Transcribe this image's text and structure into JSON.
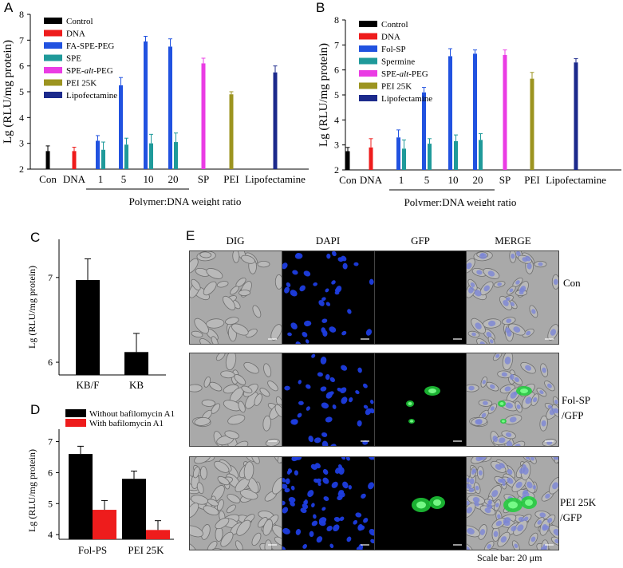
{
  "panels": {
    "a": {
      "letter": "A"
    },
    "b": {
      "letter": "B"
    },
    "c": {
      "letter": "C"
    },
    "d": {
      "letter": "D"
    },
    "e": {
      "letter": "E"
    }
  },
  "chart_data": [
    {
      "id": "A",
      "type": "bar",
      "ylabel": "Lg (RLU/mg protein)",
      "xlabel": "Polymer:DNA weight ratio",
      "ylim": [
        2,
        8
      ],
      "yticks": [
        2,
        3,
        4,
        5,
        6,
        7,
        8
      ],
      "legend_placement": "top-left",
      "groups": [
        {
          "label": "Con",
          "bars": [
            {
              "series": 0,
              "value": 2.7,
              "err": 0.2
            }
          ]
        },
        {
          "label": "DNA",
          "bars": [
            {
              "series": 1,
              "value": 2.7,
              "err": 0.15
            }
          ]
        },
        {
          "label": "1",
          "bars": [
            {
              "series": 2,
              "value": 3.1,
              "err": 0.2
            },
            {
              "series": 3,
              "value": 2.75,
              "err": 0.3
            }
          ]
        },
        {
          "label": "5",
          "bars": [
            {
              "series": 2,
              "value": 5.25,
              "err": 0.3
            },
            {
              "series": 3,
              "value": 2.95,
              "err": 0.25
            }
          ]
        },
        {
          "label": "10",
          "bars": [
            {
              "series": 2,
              "value": 6.95,
              "err": 0.2
            },
            {
              "series": 3,
              "value": 3.0,
              "err": 0.35
            }
          ]
        },
        {
          "label": "20",
          "bars": [
            {
              "series": 2,
              "value": 6.75,
              "err": 0.3
            },
            {
              "series": 3,
              "value": 3.05,
              "err": 0.35
            }
          ]
        },
        {
          "label": "SP",
          "bars": [
            {
              "series": 4,
              "value": 6.1,
              "err": 0.2
            }
          ]
        },
        {
          "label": "PEI",
          "bars": [
            {
              "series": 5,
              "value": 4.9,
              "err": 0.1
            }
          ]
        },
        {
          "label": "Lipofectamine",
          "bars": [
            {
              "series": 6,
              "value": 5.75,
              "err": 0.25
            }
          ]
        }
      ],
      "series": [
        {
          "name": "Control",
          "color": "#000000"
        },
        {
          "name": "DNA",
          "color": "#ee1c1c"
        },
        {
          "name": "FA-SPE-PEG",
          "color": "#2152e0"
        },
        {
          "name": "SPE",
          "color": "#1f9a9a"
        },
        {
          "name": "SPE-alt-PEG",
          "color": "#ea3ce4"
        },
        {
          "name": "PEI 25K",
          "color": "#9c9420"
        },
        {
          "name": "Lipofectamine",
          "color": "#1c2a8c"
        }
      ]
    },
    {
      "id": "B",
      "type": "bar",
      "ylabel": "Lg (RLU/mg protein)",
      "xlabel": "Polymer:DNA weight ratio",
      "ylim": [
        2,
        8
      ],
      "yticks": [
        2,
        3,
        4,
        5,
        6,
        7,
        8
      ],
      "legend_placement": "top-left",
      "groups": [
        {
          "label": "Con",
          "bars": [
            {
              "series": 0,
              "value": 2.75,
              "err": 0.15
            }
          ]
        },
        {
          "label": "DNA",
          "bars": [
            {
              "series": 1,
              "value": 2.9,
              "err": 0.35
            }
          ]
        },
        {
          "label": "1",
          "bars": [
            {
              "series": 2,
              "value": 3.3,
              "err": 0.3
            },
            {
              "series": 3,
              "value": 2.85,
              "err": 0.35
            }
          ]
        },
        {
          "label": "5",
          "bars": [
            {
              "series": 2,
              "value": 5.1,
              "err": 0.2
            },
            {
              "series": 3,
              "value": 3.05,
              "err": 0.2
            }
          ]
        },
        {
          "label": "10",
          "bars": [
            {
              "series": 2,
              "value": 6.55,
              "err": 0.3
            },
            {
              "series": 3,
              "value": 3.15,
              "err": 0.25
            }
          ]
        },
        {
          "label": "20",
          "bars": [
            {
              "series": 2,
              "value": 6.65,
              "err": 0.15
            },
            {
              "series": 3,
              "value": 3.2,
              "err": 0.25
            }
          ]
        },
        {
          "label": "SP",
          "bars": [
            {
              "series": 4,
              "value": 6.6,
              "err": 0.2
            }
          ]
        },
        {
          "label": "PEI",
          "bars": [
            {
              "series": 5,
              "value": 5.65,
              "err": 0.25
            }
          ]
        },
        {
          "label": "Lipofectamine",
          "bars": [
            {
              "series": 6,
              "value": 6.3,
              "err": 0.15
            }
          ]
        }
      ],
      "series": [
        {
          "name": "Control",
          "color": "#000000"
        },
        {
          "name": "DNA",
          "color": "#ee1c1c"
        },
        {
          "name": "Fol-SP",
          "color": "#2152e0"
        },
        {
          "name": "Spermine",
          "color": "#1f9a9a"
        },
        {
          "name": "SPE-alt-PEG",
          "color": "#ea3ce4"
        },
        {
          "name": "PEI 25K",
          "color": "#9c9420"
        },
        {
          "name": "Lipofectamine",
          "color": "#1c2a8c"
        }
      ]
    },
    {
      "id": "C",
      "type": "bar",
      "ylabel": "Lg (RLU/mg protein)",
      "ylim": [
        5.85,
        7.45
      ],
      "yticks": [
        6,
        7
      ],
      "categories": [
        "KB/F",
        "KB"
      ],
      "values": [
        6.97,
        6.12
      ],
      "errors": [
        0.25,
        0.22
      ],
      "color": "#000000"
    },
    {
      "id": "D",
      "type": "bar",
      "ylabel": "Lg (RLU/mg protein)",
      "ylim": [
        3.85,
        7.4
      ],
      "yticks": [
        4,
        5,
        6,
        7
      ],
      "categories": [
        "Fol-PS",
        "PEI 25K"
      ],
      "legend_placement": "top",
      "series": [
        {
          "name": "Without bafilomycin A1",
          "color": "#000000",
          "values": [
            6.6,
            5.8
          ],
          "errors": [
            0.25,
            0.25
          ]
        },
        {
          "name": "With bafilomycin A1",
          "color": "#ee1c1c",
          "values": [
            4.8,
            4.15
          ],
          "errors": [
            0.3,
            0.3
          ]
        }
      ]
    }
  ],
  "panel_e": {
    "columns": [
      "DIG",
      "DAPI",
      "GFP",
      "MERGE"
    ],
    "rows": [
      {
        "label_line1": "Con",
        "label_line2": ""
      },
      {
        "label_line1": "Fol-SP",
        "label_line2": "/GFP"
      },
      {
        "label_line1": "PEI 25K",
        "label_line2": "/GFP"
      }
    ],
    "scale_bar": "Scale bar: 20 μm"
  }
}
